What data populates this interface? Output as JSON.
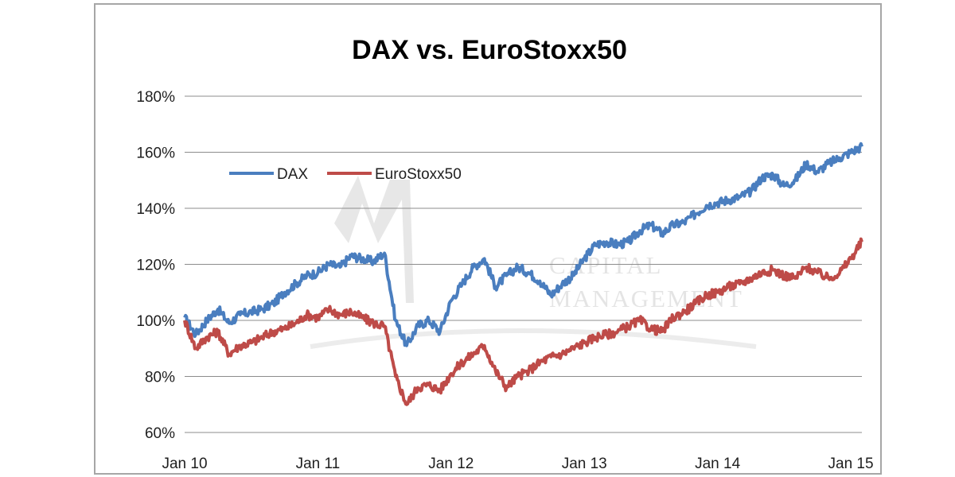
{
  "chart_data": {
    "type": "line",
    "title": "DAX vs. EuroStoxx50",
    "xlabel": "",
    "ylabel": "",
    "x_ticks": [
      "Jan 10",
      "Jan 11",
      "Jan 12",
      "Jan 13",
      "Jan 14",
      "Jan 15"
    ],
    "y_ticks": [
      "60%",
      "80%",
      "100%",
      "120%",
      "140%",
      "160%",
      "180%"
    ],
    "ylim": [
      60,
      180
    ],
    "xlim": [
      "2010-01",
      "2015-02"
    ],
    "grid": "horizontal",
    "legend_position": "upper-left",
    "watermark": [
      "CAPITAL",
      "MANAGEMENT"
    ],
    "x": [
      "2010-01",
      "2010-02",
      "2010-03",
      "2010-04",
      "2010-05",
      "2010-06",
      "2010-07",
      "2010-08",
      "2010-09",
      "2010-10",
      "2010-11",
      "2010-12",
      "2011-01",
      "2011-02",
      "2011-03",
      "2011-04",
      "2011-05",
      "2011-06",
      "2011-07",
      "2011-08",
      "2011-09",
      "2011-10",
      "2011-11",
      "2011-12",
      "2012-01",
      "2012-02",
      "2012-03",
      "2012-04",
      "2012-05",
      "2012-06",
      "2012-07",
      "2012-08",
      "2012-09",
      "2012-10",
      "2012-11",
      "2012-12",
      "2013-01",
      "2013-02",
      "2013-03",
      "2013-04",
      "2013-05",
      "2013-06",
      "2013-07",
      "2013-08",
      "2013-09",
      "2013-10",
      "2013-11",
      "2013-12",
      "2014-01",
      "2014-02",
      "2014-03",
      "2014-04",
      "2014-05",
      "2014-06",
      "2014-07",
      "2014-08",
      "2014-09",
      "2014-10",
      "2014-11",
      "2014-12",
      "2015-01",
      "2015-02"
    ],
    "series": [
      {
        "name": "DAX",
        "color": "#4a7ebf",
        "values": [
          101,
          95,
          100,
          104,
          99,
          102,
          103,
          104,
          106,
          110,
          113,
          116,
          117,
          120,
          119,
          123,
          122,
          121,
          124,
          100,
          91,
          98,
          100,
          96,
          107,
          113,
          119,
          122,
          112,
          116,
          119,
          117,
          114,
          109,
          113,
          116,
          122,
          127,
          128,
          127,
          128,
          132,
          134,
          131,
          134,
          135,
          138,
          141,
          142,
          143,
          144,
          146,
          151,
          152,
          148,
          150,
          156,
          153,
          156,
          158,
          160,
          162
        ]
      },
      {
        "name": "EuroStoxx50",
        "color": "#be4b48",
        "values": [
          100,
          90,
          94,
          96,
          88,
          91,
          92,
          94,
          96,
          97,
          99,
          102,
          101,
          104,
          102,
          103,
          101,
          99,
          98,
          80,
          70,
          76,
          77,
          75,
          81,
          85,
          88,
          91,
          82,
          76,
          80,
          82,
          85,
          87,
          88,
          90,
          92,
          94,
          95,
          96,
          98,
          100,
          97,
          96,
          101,
          103,
          106,
          109,
          110,
          112,
          113,
          115,
          117,
          118,
          116,
          115,
          119,
          117,
          115,
          117,
          122,
          128
        ]
      }
    ]
  }
}
